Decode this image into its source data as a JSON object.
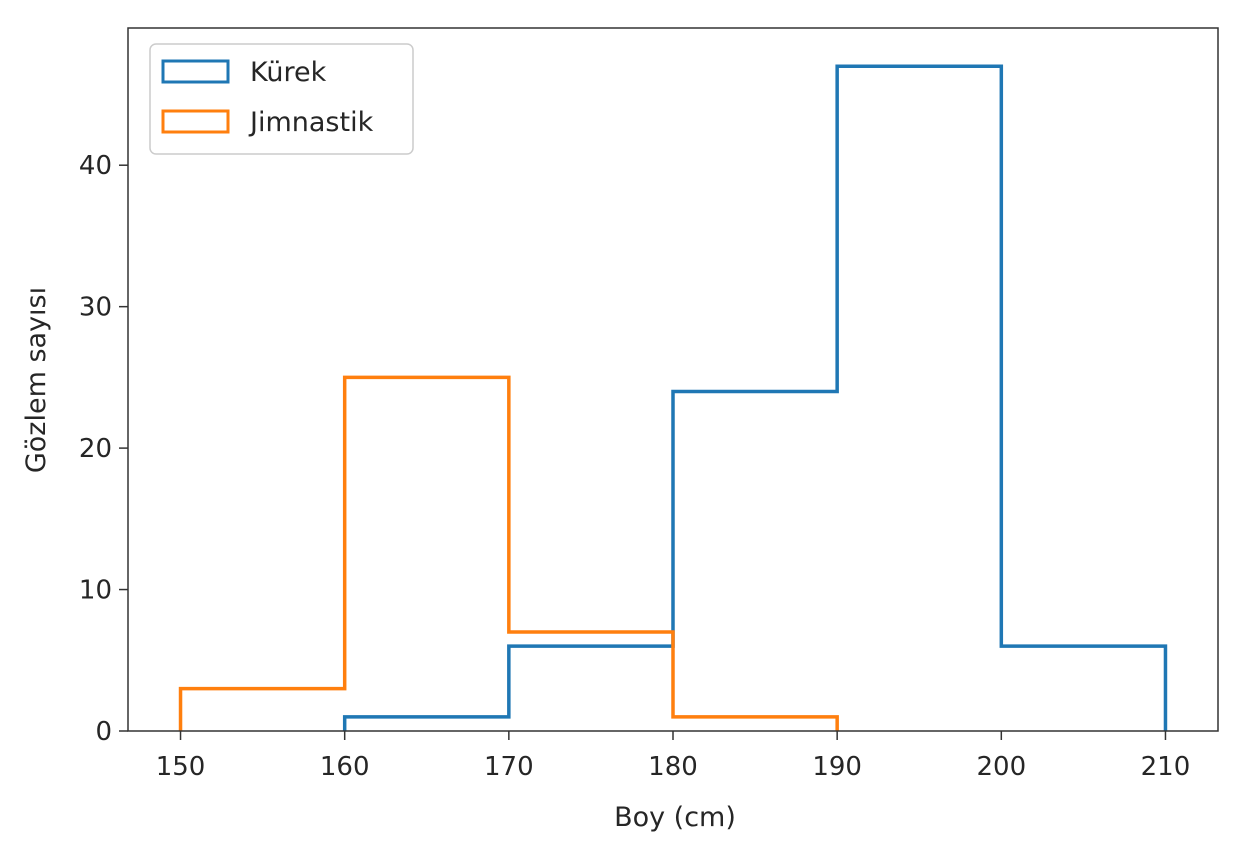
{
  "chart_data": {
    "type": "histogram-step",
    "title": "",
    "xlabel": "Boy (cm)",
    "ylabel": "Gözlem sayısı",
    "xlim": [
      146.8,
      213.2
    ],
    "ylim": [
      0,
      49.7
    ],
    "xticks": [
      150,
      160,
      170,
      180,
      190,
      200,
      210
    ],
    "yticks": [
      0,
      10,
      20,
      30,
      40
    ],
    "grid": false,
    "legend_position": "top-left",
    "series": [
      {
        "name": "Kürek",
        "color": "#1f77b4",
        "bin_edges": [
          160,
          170,
          180,
          190,
          200,
          210
        ],
        "counts": [
          1,
          6,
          24,
          47,
          6
        ]
      },
      {
        "name": "Jimnastik",
        "color": "#ff7f0e",
        "bin_edges": [
          150,
          160,
          170,
          180,
          190
        ],
        "counts": [
          3,
          25,
          7,
          1
        ]
      }
    ]
  }
}
